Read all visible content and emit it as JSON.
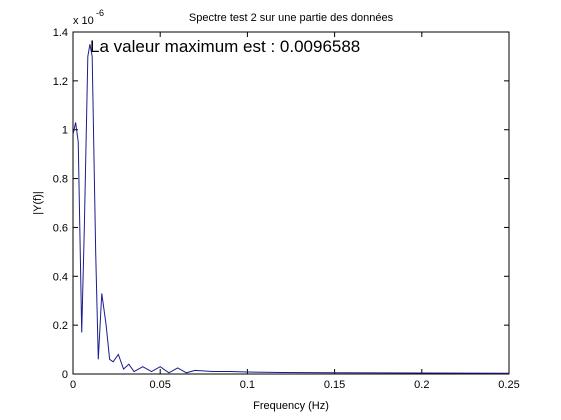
{
  "chart_data": {
    "type": "line",
    "title": "Spectre test 2 sur une partie des données",
    "x_label": "Frequency (Hz)",
    "y_label": "|Y(f)|",
    "y_scale_base": "x 10",
    "y_scale_exponent": "-6",
    "annotation": "La valeur maximum est : 0.0096588",
    "x": [
      0,
      0.0015,
      0.003,
      0.005,
      0.0065,
      0.0085,
      0.0097,
      0.011,
      0.013,
      0.0145,
      0.0165,
      0.019,
      0.021,
      0.023,
      0.026,
      0.029,
      0.032,
      0.035,
      0.04,
      0.045,
      0.05,
      0.055,
      0.06,
      0.065,
      0.07,
      0.08,
      0.09,
      0.1,
      0.12,
      0.15,
      0.2,
      0.25
    ],
    "series": [
      {
        "color": "#1c1c8e",
        "values": [
          0.98,
          1.03,
          0.95,
          0.17,
          0.6,
          1.3,
          1.35,
          1.3,
          0.5,
          0.06,
          0.33,
          0.2,
          0.06,
          0.05,
          0.08,
          0.02,
          0.04,
          0.01,
          0.03,
          0.01,
          0.03,
          0.005,
          0.025,
          0.005,
          0.015,
          0.01,
          0.01,
          0.008,
          0.006,
          0.005,
          0.004,
          0.003
        ]
      }
    ],
    "xlim": [
      0,
      0.25
    ],
    "xticks": [
      0,
      0.05,
      0.1,
      0.15,
      0.2,
      0.25
    ],
    "ylim": [
      0,
      1.4
    ],
    "yticks": [
      0,
      0.2,
      0.4,
      0.6,
      0.8,
      1,
      1.2,
      1.4
    ],
    "grid": false
  }
}
